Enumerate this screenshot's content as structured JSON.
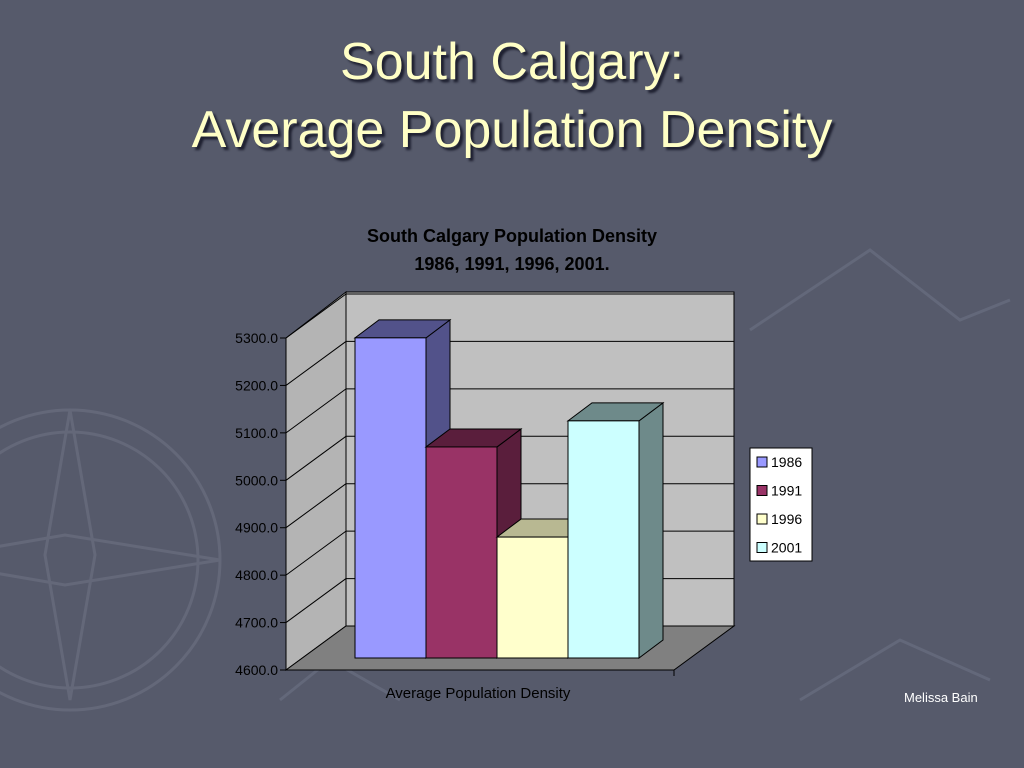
{
  "slide": {
    "title_line1": "South Calgary:",
    "title_line2": "Average Population Density",
    "author": "Melissa Bain"
  },
  "chart_data": {
    "type": "bar",
    "title": "South Calgary Population Density",
    "subtitle": "1986, 1991, 1996, 2001.",
    "categories": [
      "Average Population Density"
    ],
    "xlabel": "",
    "ylabel": "",
    "ylim": [
      4600,
      5300
    ],
    "yticks": [
      "4600.0",
      "4700.0",
      "4800.0",
      "4900.0",
      "5000.0",
      "5100.0",
      "5200.0",
      "5300.0"
    ],
    "grid": true,
    "legend": "right",
    "series": [
      {
        "name": "1986",
        "values": [
          5275
        ],
        "color": "#9999ff",
        "side": "#52528a"
      },
      {
        "name": "1991",
        "values": [
          5045
        ],
        "color": "#993366",
        "side": "#5a1e3c"
      },
      {
        "name": "1996",
        "values": [
          4855
        ],
        "color": "#ffffcc",
        "side": "#b8b892"
      },
      {
        "name": "2001",
        "values": [
          5100
        ],
        "color": "#ccffff",
        "side": "#6e8a8a"
      }
    ],
    "colors": {
      "wall": "#c0c0c0",
      "floor": "#808080",
      "background": "#565a6b",
      "title_text": "#ffffc6"
    }
  }
}
